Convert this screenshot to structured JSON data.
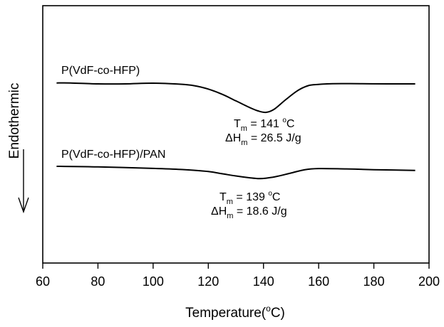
{
  "chart_data": {
    "type": "line",
    "xlabel_main": "Temperature(",
    "xlabel_unit": "o",
    "xlabel_end": "C)",
    "ylabel": "Endothermic",
    "xlim": [
      60,
      200
    ],
    "xticks": [
      60,
      80,
      100,
      120,
      140,
      160,
      180,
      200
    ],
    "series": [
      {
        "name": "P(VdF-co-HFP)",
        "x": [
          65,
          70,
          80,
          90,
          100,
          110,
          115,
          120,
          125,
          130,
          135,
          138,
          141,
          144,
          148,
          152,
          155,
          158,
          165,
          175,
          185,
          195
        ],
        "y": [
          0.25,
          0.25,
          0.0,
          0.0,
          0.2,
          -0.1,
          -0.5,
          -1.4,
          -2.8,
          -4.6,
          -6.4,
          -7.3,
          -7.7,
          -6.8,
          -4.3,
          -2.0,
          -0.8,
          -0.25,
          0.05,
          0.05,
          0.0,
          0.0
        ],
        "annotation": {
          "tm_prefix": "T",
          "tm_sub": "m",
          "tm_value": " = 141 ",
          "tm_deg": "o",
          "tm_unit": "C",
          "dh_prefix": "ΔH",
          "dh_sub": "m",
          "dh_value": " = 26.5 J/g"
        }
      },
      {
        "name": "P(VdF-co-HFP)/PAN",
        "x": [
          65,
          80,
          100,
          110,
          120,
          125,
          130,
          135,
          138,
          141,
          145,
          150,
          155,
          160,
          170,
          180,
          195
        ],
        "y": [
          0.0,
          -0.15,
          -0.55,
          -0.85,
          -1.4,
          -2.0,
          -2.6,
          -3.1,
          -3.3,
          -3.2,
          -2.7,
          -1.8,
          -0.9,
          -0.6,
          -0.7,
          -0.9,
          -1.1
        ],
        "annotation": {
          "tm_prefix": "T",
          "tm_sub": "m",
          "tm_value": " = 139 ",
          "tm_deg": "o",
          "tm_unit": "C",
          "dh_prefix": "ΔH",
          "dh_sub": "m",
          "dh_value": " = 18.6 J/g"
        }
      }
    ]
  }
}
